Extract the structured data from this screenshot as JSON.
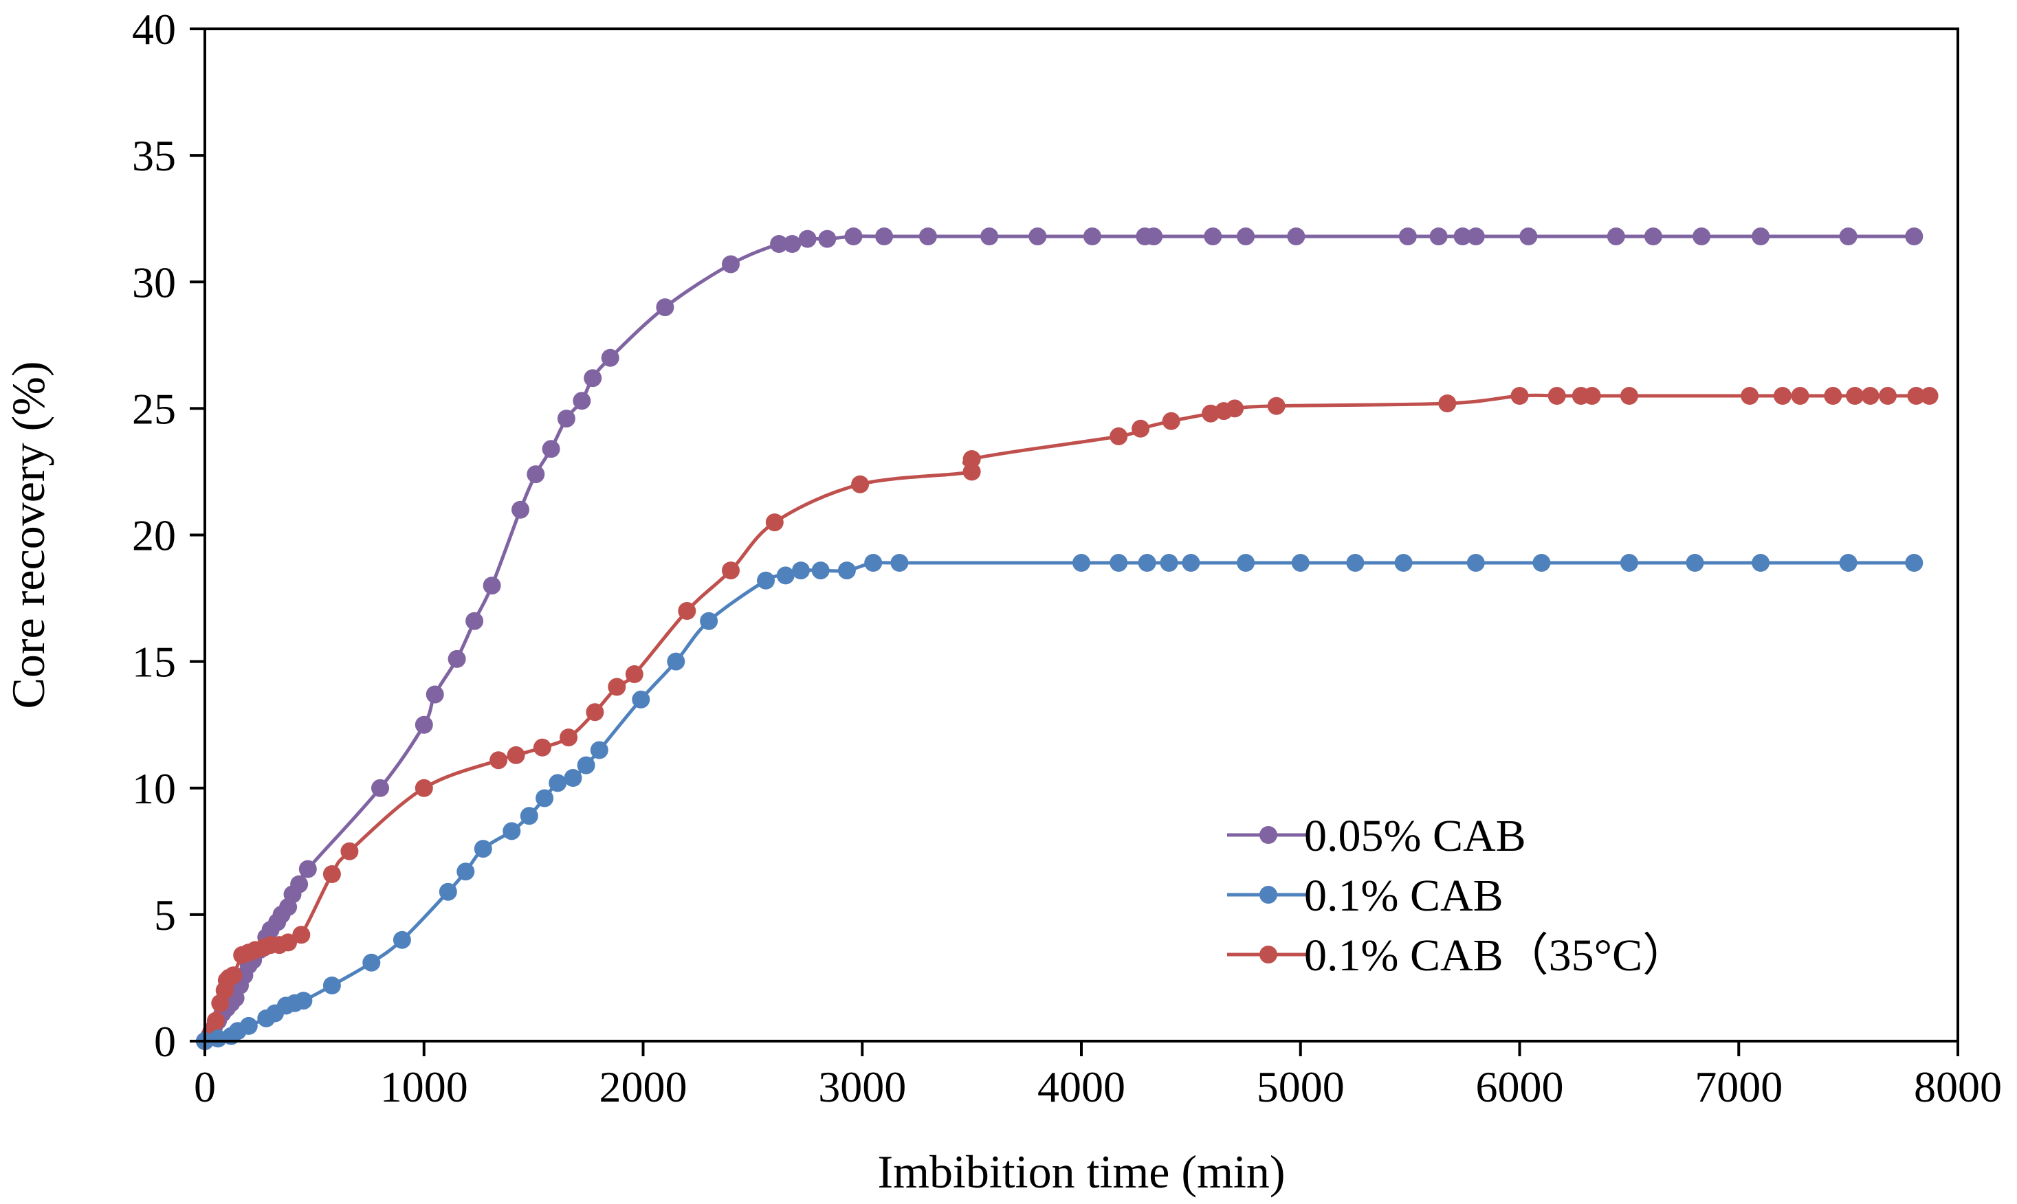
{
  "chart_data": {
    "type": "line",
    "title": "",
    "xlabel": "Imbibition time (min)",
    "ylabel": "Core recovery (%)",
    "xlim": [
      0,
      8000
    ],
    "ylim": [
      0,
      40
    ],
    "x_ticks": [
      0,
      1000,
      2000,
      3000,
      4000,
      5000,
      6000,
      7000,
      8000
    ],
    "y_ticks": [
      0,
      5,
      10,
      15,
      20,
      25,
      30,
      35,
      40
    ],
    "grid": false,
    "legend_position": "bottom-right",
    "series": [
      {
        "name": "0.05% CAB",
        "color": "#8064A2",
        "x": [
          0,
          20,
          40,
          60,
          80,
          100,
          120,
          140,
          160,
          180,
          200,
          220,
          250,
          280,
          300,
          330,
          350,
          380,
          400,
          430,
          470,
          800,
          1000,
          1050,
          1150,
          1230,
          1310,
          1440,
          1510,
          1580,
          1650,
          1720,
          1770,
          1850,
          2100,
          2400,
          2620,
          2680,
          2750,
          2840,
          2960,
          3100,
          3300,
          3580,
          3800,
          4050,
          4290,
          4330,
          4600,
          4750,
          4980,
          5490,
          5630,
          5740,
          5800,
          6040,
          6440,
          6610,
          6830,
          7100,
          7500,
          7800
        ],
        "y": [
          0,
          0.2,
          0.5,
          0.8,
          1.1,
          1.3,
          1.5,
          1.7,
          2.2,
          2.6,
          3.0,
          3.2,
          3.6,
          4.1,
          4.4,
          4.7,
          5.0,
          5.3,
          5.8,
          6.2,
          6.8,
          10.0,
          12.5,
          13.7,
          15.1,
          16.6,
          18.0,
          21.0,
          22.4,
          23.4,
          24.6,
          25.3,
          26.2,
          27.0,
          29.0,
          30.7,
          31.5,
          31.5,
          31.7,
          31.7,
          31.8,
          31.8,
          31.8,
          31.8,
          31.8,
          31.8,
          31.8,
          31.8,
          31.8,
          31.8,
          31.8,
          31.8,
          31.8,
          31.8,
          31.8,
          31.8,
          31.8,
          31.8,
          31.8,
          31.8,
          31.8,
          31.8
        ]
      },
      {
        "name": "0.1% CAB",
        "color": "#4F81BD",
        "x": [
          0,
          60,
          120,
          150,
          200,
          280,
          320,
          370,
          410,
          450,
          580,
          760,
          900,
          1110,
          1190,
          1270,
          1400,
          1480,
          1550,
          1610,
          1680,
          1740,
          1800,
          1990,
          2150,
          2300,
          2560,
          2650,
          2720,
          2810,
          2930,
          3050,
          3170,
          4000,
          4170,
          4300,
          4400,
          4500,
          4750,
          5000,
          5250,
          5470,
          5800,
          6100,
          6500,
          6800,
          7100,
          7500,
          7800
        ],
        "y": [
          0,
          0.1,
          0.2,
          0.4,
          0.6,
          0.9,
          1.1,
          1.4,
          1.5,
          1.6,
          2.2,
          3.1,
          4.0,
          5.9,
          6.7,
          7.6,
          8.3,
          8.9,
          9.6,
          10.2,
          10.4,
          10.9,
          11.5,
          13.5,
          15.0,
          16.6,
          18.2,
          18.4,
          18.6,
          18.6,
          18.6,
          18.9,
          18.9,
          18.9,
          18.9,
          18.9,
          18.9,
          18.9,
          18.9,
          18.9,
          18.9,
          18.9,
          18.9,
          18.9,
          18.9,
          18.9,
          18.9,
          18.9,
          18.9
        ]
      },
      {
        "name": "0.1% CAB（35°C）",
        "color": "#C0504D",
        "x": [
          0,
          30,
          50,
          70,
          90,
          100,
          110,
          130,
          170,
          200,
          230,
          270,
          300,
          340,
          380,
          440,
          580,
          660,
          1000,
          1340,
          1420,
          1540,
          1660,
          1780,
          1880,
          1960,
          2200,
          2400,
          2600,
          2990,
          3500,
          3500,
          4170,
          4270,
          4410,
          4590,
          4650,
          4700,
          4890,
          5670,
          6000,
          6170,
          6280,
          6330,
          6500,
          7050,
          7200,
          7280,
          7430,
          7530,
          7600,
          7680,
          7810,
          7870
        ],
        "y": [
          0,
          0.4,
          0.8,
          1.5,
          2.0,
          2.4,
          2.5,
          2.6,
          3.4,
          3.5,
          3.6,
          3.7,
          3.8,
          3.8,
          3.9,
          4.2,
          6.6,
          7.5,
          10.0,
          11.1,
          11.3,
          11.6,
          12.0,
          13.0,
          14.0,
          14.5,
          17.0,
          18.6,
          20.5,
          22.0,
          22.5,
          23.0,
          23.9,
          24.2,
          24.5,
          24.8,
          24.9,
          25.0,
          25.1,
          25.2,
          25.5,
          25.5,
          25.5,
          25.5,
          25.5,
          25.5,
          25.5,
          25.5,
          25.5,
          25.5,
          25.5,
          25.5,
          25.5,
          25.5
        ]
      }
    ]
  }
}
